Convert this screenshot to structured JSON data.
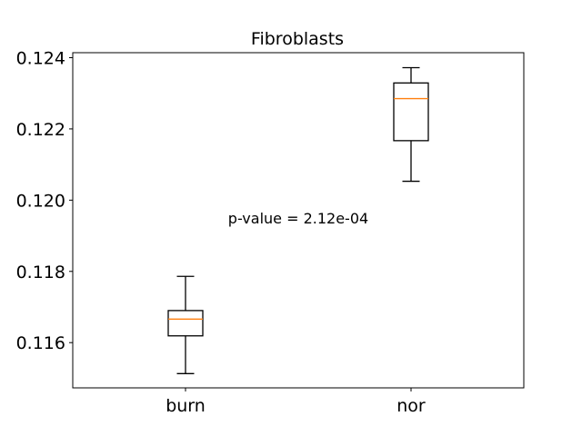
{
  "chart_data": {
    "type": "box",
    "title": "Fibroblasts",
    "xlabel": "",
    "ylabel": "",
    "categories": [
      "burn",
      "nor"
    ],
    "boxes": [
      {
        "category": "burn",
        "whisker_low": 0.11513,
        "q1": 0.11619,
        "median": 0.11666,
        "q3": 0.1169,
        "whisker_high": 0.11786
      },
      {
        "category": "nor",
        "whisker_low": 0.12053,
        "q1": 0.12167,
        "median": 0.12285,
        "q3": 0.12329,
        "whisker_high": 0.12372
      }
    ],
    "ylim": [
      0.11473,
      0.12414
    ],
    "yticks": [
      0.116,
      0.118,
      0.12,
      0.122,
      0.124
    ],
    "ytick_labels": [
      "0.116",
      "0.118",
      "0.120",
      "0.122",
      "0.124"
    ],
    "annotation": {
      "text": "p-value = 2.12e-04",
      "x": 1.5,
      "y": 0.1195
    },
    "grid": false,
    "colors": {
      "box": "#000000",
      "median": "#ff7f0e",
      "background": "#ffffff"
    }
  }
}
